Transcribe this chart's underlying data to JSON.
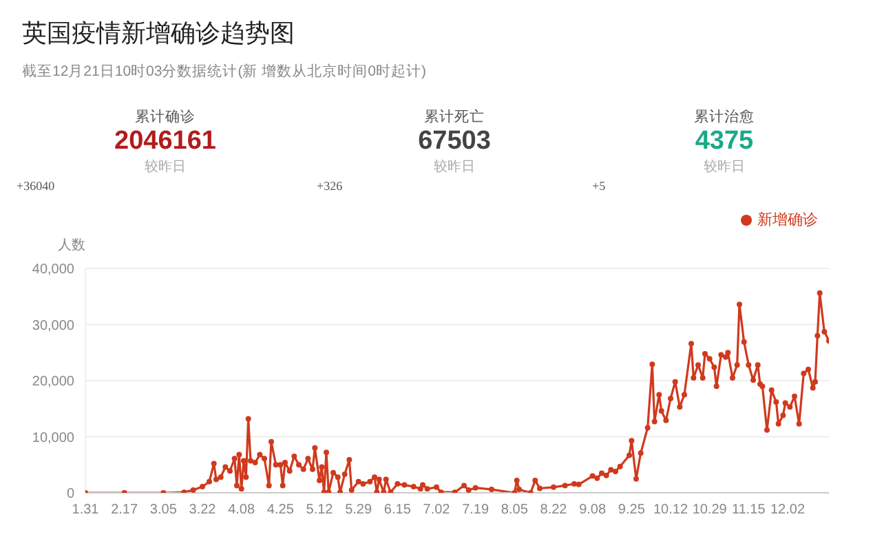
{
  "chart_data": {
    "type": "line",
    "title": "英国疫情新增确诊趋势图",
    "subtitle": "截至12月21日10时03分数据统计(新 增数从北京时间0时起计)",
    "annotations": [
      "累计确诊",
      "2046161",
      "较昨日",
      "+36040",
      "累计死亡",
      "67503",
      "较昨日",
      "+326",
      "累计治愈",
      "4375",
      "较昨日",
      "+5"
    ],
    "ylabel": "人数",
    "legend": "top right",
    "grid": "y",
    "marker": "circle",
    "line_style": "solid",
    "x": [
      "--01-31",
      "--02-17",
      "--03-05",
      "--03-14",
      "--03-18",
      "--03-22",
      "--03-25",
      "--03-27",
      "--03-28",
      "--03-30",
      "--04-01",
      "--04-03",
      "--04-05",
      "--04-06",
      "--04-07",
      "--04-08",
      "--04-09",
      "--04-10",
      "--04-11",
      "--04-12",
      "--04-14",
      "--04-16",
      "--04-18",
      "--04-20",
      "--04-21",
      "--04-23",
      "--04-25",
      "--04-26",
      "--04-27",
      "--04-29",
      "--05-01",
      "--05-03",
      "--05-05",
      "--05-07",
      "--05-09",
      "--05-10",
      "--05-12",
      "--05-13",
      "--05-14",
      "--05-15",
      "--05-16",
      "--05-18",
      "--05-20",
      "--05-21",
      "--05-23",
      "--05-25",
      "--05-26",
      "--05-29",
      "--05-31",
      "--06-03",
      "--06-05",
      "--06-06",
      "--06-07",
      "--06-09",
      "--06-10",
      "--06-12",
      "--06-15",
      "--06-18",
      "--06-22",
      "--06-25",
      "--06-26",
      "--06-28",
      "--07-02",
      "--07-04",
      "--07-10",
      "--07-14",
      "--07-16",
      "--07-19",
      "--07-26",
      "--08-05",
      "--08-06",
      "--08-07",
      "--08-12",
      "--08-14",
      "--08-16",
      "--08-22",
      "--08-27",
      "--08-31",
      "--09-02",
      "--09-08",
      "--09-10",
      "--09-12",
      "--09-14",
      "--09-16",
      "--09-18",
      "--09-20",
      "--09-24",
      "--09-25",
      "--09-27",
      "--09-29",
      "--10-02",
      "--10-04",
      "--10-05",
      "--10-07",
      "--10-08",
      "--10-10",
      "--10-12",
      "--10-14",
      "--10-16",
      "--10-18",
      "--10-21",
      "--10-22",
      "--10-24",
      "--10-26",
      "--10-27",
      "--10-29",
      "--10-31",
      "--11-01",
      "--11-03",
      "--11-05",
      "--11-06",
      "--11-08",
      "--11-10",
      "--11-11",
      "--11-13",
      "--11-15",
      "--11-17",
      "--11-19",
      "--11-20",
      "--11-21",
      "--11-23",
      "--11-25",
      "--11-27",
      "--11-28",
      "--11-30",
      "--12-01",
      "--12-03",
      "--12-05",
      "--12-07",
      "--12-09",
      "--12-11",
      "--12-13",
      "--12-14",
      "--12-15",
      "--12-16",
      "--12-18",
      "--12-20"
    ],
    "series": [
      {
        "name": "新增确诊",
        "color": "#d0391d",
        "values": [
          0,
          0,
          0,
          100,
          500,
          1100,
          2000,
          5200,
          2400,
          2800,
          4600,
          3900,
          6100,
          1300,
          6800,
          700,
          5700,
          2800,
          13200,
          5700,
          5400,
          6800,
          6100,
          1300,
          9100,
          5000,
          5000,
          1300,
          5400,
          3900,
          6500,
          5000,
          4200,
          6100,
          4200,
          8000,
          2200,
          4600,
          100,
          7200,
          100,
          3600,
          2800,
          100,
          3300,
          5900,
          500,
          2000,
          1600,
          2000,
          2800,
          100,
          2400,
          100,
          2400,
          100,
          1600,
          1400,
          1100,
          700,
          1400,
          700,
          1000,
          100,
          100,
          1300,
          500,
          900,
          600,
          0,
          2200,
          600,
          0,
          2200,
          800,
          1000,
          1300,
          1600,
          1500,
          3000,
          2600,
          3500,
          3100,
          4100,
          3800,
          4700,
          6700,
          9300,
          2500,
          7100,
          11600,
          22900,
          12700,
          17500,
          14600,
          12900,
          16800,
          19800,
          15300,
          17500,
          26600,
          20500,
          22800,
          20500,
          24800,
          23900,
          22400,
          19000,
          24600,
          24200,
          25000,
          20500,
          22800,
          33600,
          26900,
          22800,
          20100,
          22800,
          19400,
          19000,
          11200,
          18300,
          16200,
          12300,
          13800,
          16000,
          15300,
          17200,
          12300,
          21300,
          22000,
          18700,
          19800,
          28000,
          35600,
          28700,
          27100
        ]
      }
    ],
    "xlim": [
      "--01-31",
      "--12-20"
    ],
    "xticks": [
      {
        "value": "--01-31",
        "label": "1.31"
      },
      {
        "value": "--02-17",
        "label": "2.17"
      },
      {
        "value": "--03-05",
        "label": "3.05"
      },
      {
        "value": "--03-22",
        "label": "3.22"
      },
      {
        "value": "--04-08",
        "label": "4.08"
      },
      {
        "value": "--04-25",
        "label": "4.25"
      },
      {
        "value": "--05-12",
        "label": "5.12"
      },
      {
        "value": "--05-29",
        "label": "5.29"
      },
      {
        "value": "--06-15",
        "label": "6.15"
      },
      {
        "value": "--07-02",
        "label": "7.02"
      },
      {
        "value": "--07-19",
        "label": "7.19"
      },
      {
        "value": "--08-05",
        "label": "8.05"
      },
      {
        "value": "--08-22",
        "label": "8.22"
      },
      {
        "value": "--09-08",
        "label": "9.08"
      },
      {
        "value": "--09-25",
        "label": "9.25"
      },
      {
        "value": "--10-12",
        "label": "10.12"
      },
      {
        "value": "--10-29",
        "label": "10.29"
      },
      {
        "value": "--11-15",
        "label": "11.15"
      },
      {
        "value": "--12-02",
        "label": "12.02"
      }
    ],
    "ylim": [
      0,
      40000
    ],
    "yticks": [
      0,
      {
        "value": 10000,
        "label": "10,000"
      },
      {
        "value": 20000,
        "label": "20,000"
      },
      {
        "value": 30000,
        "label": "30,000"
      },
      {
        "value": 40000,
        "label": "40,000"
      }
    ]
  }
}
